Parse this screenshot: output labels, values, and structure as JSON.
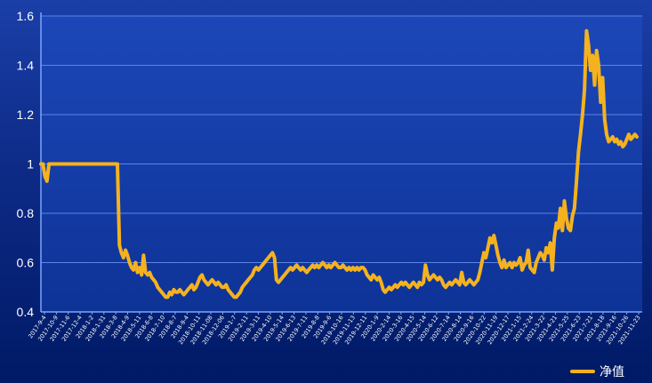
{
  "chart_data": {
    "type": "line",
    "ylim": [
      0.4,
      1.6
    ],
    "y_ticks": [
      "0.4",
      "0.6",
      "0.8",
      "1",
      "1.2",
      "1.4",
      "1.6"
    ],
    "x_tick_labels": [
      "2017-9-4",
      "2017-10-9",
      "2017-11-6",
      "2017-12-4",
      "2018-1-2",
      "2018-1-31",
      "2018-3-8",
      "2018-4-9",
      "2018-5-11",
      "2018-6-8",
      "2018-7-10",
      "2018-8-7",
      "2018-9-4",
      "2018-10-11",
      "2018-11-08",
      "2018-12-06",
      "2019-1-7",
      "2019-2-11",
      "2019-3-11",
      "2019-4-10",
      "2019-5-14",
      "2019-6-13",
      "2019-7-11",
      "2019-8-8",
      "2019-9-6",
      "2019-10-16",
      "2019-11-13",
      "2019-12-11",
      "2020-1-9",
      "2020-2-14",
      "2020-3-16",
      "2020-4-15",
      "2020-5-14",
      "2020-6-12",
      "2020-7-14",
      "2020-8-14",
      "2020-9-16",
      "2020-10-22",
      "2020-11-19",
      "2020-12-17",
      "2021-1-15",
      "2021-2-24",
      "2021-3-22",
      "2021-4-21",
      "2021-5-25",
      "2021-6-23",
      "2021-7-21",
      "2021-8-18",
      "2021-9-16",
      "2021-10-26",
      "2021-11-23"
    ],
    "grid": true,
    "legend": "bottom-right",
    "series": [
      {
        "name": "净值",
        "color": "#f5b21e",
        "values": [
          1.0,
          1.0,
          0.95,
          0.93,
          1.0,
          1.0,
          1.0,
          1.0,
          1.0,
          1.0,
          1.0,
          1.0,
          1.0,
          1.0,
          1.0,
          1.0,
          1.0,
          1.0,
          1.0,
          1.0,
          1.0,
          1.0,
          1.0,
          1.0,
          1.0,
          1.0,
          1.0,
          1.0,
          1.0,
          1.0,
          1.0,
          1.0,
          1.0,
          1.0,
          1.0,
          1.0,
          1.0,
          1.0,
          1.0,
          0.67,
          0.64,
          0.62,
          0.65,
          0.63,
          0.6,
          0.58,
          0.57,
          0.6,
          0.56,
          0.58,
          0.55,
          0.63,
          0.56,
          0.55,
          0.56,
          0.54,
          0.53,
          0.52,
          0.5,
          0.49,
          0.48,
          0.47,
          0.46,
          0.46,
          0.48,
          0.47,
          0.49,
          0.48,
          0.48,
          0.49,
          0.48,
          0.47,
          0.48,
          0.49,
          0.5,
          0.51,
          0.49,
          0.5,
          0.52,
          0.54,
          0.55,
          0.53,
          0.52,
          0.51,
          0.52,
          0.53,
          0.52,
          0.51,
          0.52,
          0.51,
          0.5,
          0.5,
          0.51,
          0.49,
          0.48,
          0.47,
          0.46,
          0.46,
          0.47,
          0.48,
          0.5,
          0.51,
          0.52,
          0.53,
          0.54,
          0.55,
          0.57,
          0.58,
          0.57,
          0.58,
          0.59,
          0.6,
          0.61,
          0.62,
          0.63,
          0.64,
          0.62,
          0.53,
          0.52,
          0.53,
          0.54,
          0.55,
          0.56,
          0.57,
          0.58,
          0.57,
          0.58,
          0.59,
          0.58,
          0.57,
          0.58,
          0.57,
          0.56,
          0.57,
          0.58,
          0.59,
          0.58,
          0.59,
          0.58,
          0.59,
          0.6,
          0.59,
          0.58,
          0.59,
          0.58,
          0.59,
          0.6,
          0.59,
          0.58,
          0.58,
          0.59,
          0.58,
          0.57,
          0.58,
          0.57,
          0.58,
          0.57,
          0.58,
          0.57,
          0.58,
          0.58,
          0.57,
          0.55,
          0.54,
          0.53,
          0.55,
          0.54,
          0.53,
          0.54,
          0.52,
          0.49,
          0.48,
          0.49,
          0.5,
          0.49,
          0.5,
          0.51,
          0.5,
          0.51,
          0.52,
          0.51,
          0.52,
          0.51,
          0.5,
          0.51,
          0.52,
          0.51,
          0.5,
          0.52,
          0.51,
          0.52,
          0.59,
          0.55,
          0.53,
          0.54,
          0.55,
          0.54,
          0.53,
          0.54,
          0.53,
          0.51,
          0.5,
          0.51,
          0.52,
          0.51,
          0.52,
          0.53,
          0.52,
          0.51,
          0.56,
          0.52,
          0.51,
          0.52,
          0.53,
          0.52,
          0.51,
          0.52,
          0.53,
          0.56,
          0.6,
          0.64,
          0.62,
          0.66,
          0.7,
          0.68,
          0.71,
          0.67,
          0.63,
          0.6,
          0.58,
          0.61,
          0.58,
          0.59,
          0.6,
          0.58,
          0.6,
          0.59,
          0.6,
          0.62,
          0.57,
          0.59,
          0.6,
          0.65,
          0.58,
          0.57,
          0.56,
          0.6,
          0.62,
          0.64,
          0.63,
          0.61,
          0.66,
          0.64,
          0.68,
          0.57,
          0.7,
          0.76,
          0.74,
          0.82,
          0.73,
          0.85,
          0.78,
          0.74,
          0.73,
          0.79,
          0.82,
          0.93,
          1.05,
          1.12,
          1.2,
          1.3,
          1.54,
          1.48,
          1.38,
          1.44,
          1.32,
          1.46,
          1.4,
          1.25,
          1.35,
          1.18,
          1.12,
          1.09,
          1.1,
          1.11,
          1.09,
          1.1,
          1.08,
          1.09,
          1.07,
          1.08,
          1.1,
          1.12,
          1.1,
          1.11,
          1.12,
          1.11
        ]
      }
    ]
  }
}
